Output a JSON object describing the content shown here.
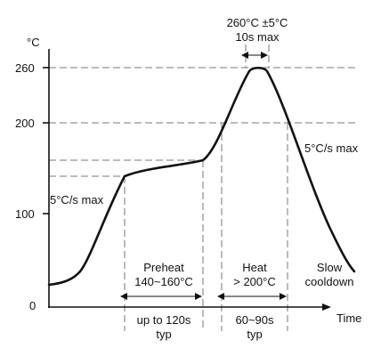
{
  "y_axis": {
    "unit": "°C",
    "ticks": [
      "260",
      "200",
      "100",
      "0"
    ]
  },
  "x_axis": {
    "label": "Time"
  },
  "annotations": {
    "peak_line1": "260°C ±5°C",
    "peak_line2": "10s max",
    "ramp_up": "5°C/s max",
    "ramp_down": "5°C/s max",
    "preheat_line1": "Preheat",
    "preheat_line2": "140~160°C",
    "heat_line1": "Heat",
    "heat_line2": "> 200°C",
    "cool_line1": "Slow",
    "cool_line2": "cooldown",
    "preheat_time_line1": "up to 120s",
    "preheat_time_line2": "typ",
    "heat_time_line1": "60~90s",
    "heat_time_line2": "typ"
  }
}
